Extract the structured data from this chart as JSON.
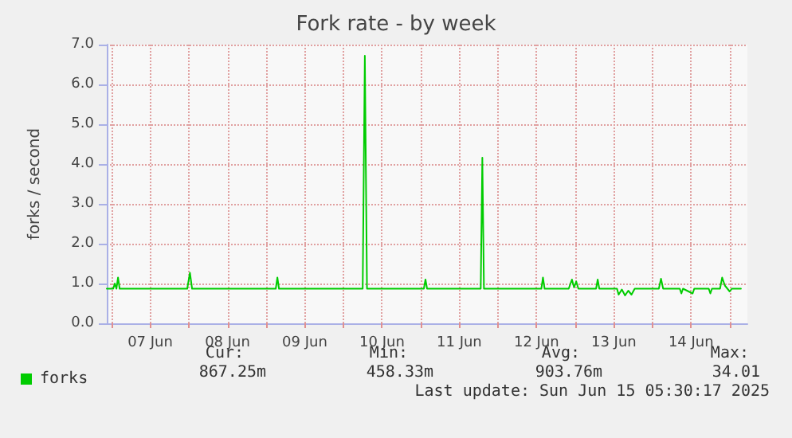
{
  "chart_data": {
    "type": "line",
    "title": "Fork rate - by week",
    "ylabel": "forks / second",
    "xlim": [
      "2025-06-06T22:30",
      "2025-06-15T05:30"
    ],
    "xticks": [
      {
        "value": "2025-06-07T00:00",
        "label": null
      },
      {
        "value": "2025-06-07T12:00",
        "label": "07 Jun"
      },
      {
        "value": "2025-06-08T00:00",
        "label": null
      },
      {
        "value": "2025-06-08T12:00",
        "label": "08 Jun"
      },
      {
        "value": "2025-06-09T00:00",
        "label": null
      },
      {
        "value": "2025-06-09T12:00",
        "label": "09 Jun"
      },
      {
        "value": "2025-06-10T00:00",
        "label": null
      },
      {
        "value": "2025-06-10T12:00",
        "label": "10 Jun"
      },
      {
        "value": "2025-06-11T00:00",
        "label": null
      },
      {
        "value": "2025-06-11T12:00",
        "label": "11 Jun"
      },
      {
        "value": "2025-06-12T00:00",
        "label": null
      },
      {
        "value": "2025-06-12T12:00",
        "label": "12 Jun"
      },
      {
        "value": "2025-06-13T00:00",
        "label": null
      },
      {
        "value": "2025-06-13T12:00",
        "label": "13 Jun"
      },
      {
        "value": "2025-06-14T00:00",
        "label": null
      },
      {
        "value": "2025-06-14T12:00",
        "label": "14 Jun"
      },
      {
        "value": "2025-06-15T00:00",
        "label": null
      }
    ],
    "ylim": [
      0,
      7
    ],
    "yticks": [
      {
        "value": 0,
        "label": "0.0"
      },
      {
        "value": 1,
        "label": "1.0"
      },
      {
        "value": 2,
        "label": "2.0"
      },
      {
        "value": 3,
        "label": "3.0"
      },
      {
        "value": 4,
        "label": "4.0"
      },
      {
        "value": 5,
        "label": "5.0"
      },
      {
        "value": 6,
        "label": "6.0"
      },
      {
        "value": 7,
        "label": "7.0"
      }
    ],
    "grid": true,
    "legend": "bottom left",
    "marker": "none",
    "line_style": "solid",
    "series": [
      {
        "name": "forks",
        "color": "#00cc00",
        "x": [
          "2025-06-06T22:30",
          "2025-06-07T00:30",
          "2025-06-07T01:00",
          "2025-06-07T01:30",
          "2025-06-07T02:00",
          "2025-06-07T02:30",
          "2025-06-07T23:30",
          "2025-06-08T00:20",
          "2025-06-08T01:00",
          "2025-06-09T03:00",
          "2025-06-09T03:30",
          "2025-06-09T04:00",
          "2025-06-10T06:00",
          "2025-06-10T06:40",
          "2025-06-10T07:20",
          "2025-06-11T01:00",
          "2025-06-11T01:30",
          "2025-06-11T02:00",
          "2025-06-11T18:40",
          "2025-06-11T19:10",
          "2025-06-11T19:40",
          "2025-06-12T13:30",
          "2025-06-12T14:00",
          "2025-06-12T14:30",
          "2025-06-12T22:00",
          "2025-06-12T23:00",
          "2025-06-12T23:40",
          "2025-06-13T00:20",
          "2025-06-13T01:00",
          "2025-06-13T06:30",
          "2025-06-13T07:00",
          "2025-06-13T07:30",
          "2025-06-13T13:00",
          "2025-06-13T13:30",
          "2025-06-13T14:30",
          "2025-06-13T15:30",
          "2025-06-13T16:30",
          "2025-06-13T17:30",
          "2025-06-13T18:30",
          "2025-06-14T02:00",
          "2025-06-14T02:40",
          "2025-06-14T03:20",
          "2025-06-14T08:30",
          "2025-06-14T09:00",
          "2025-06-14T09:30",
          "2025-06-14T12:30",
          "2025-06-14T13:00",
          "2025-06-14T17:30",
          "2025-06-14T18:00",
          "2025-06-14T18:30",
          "2025-06-14T21:00",
          "2025-06-14T21:40",
          "2025-06-14T22:30",
          "2025-06-15T00:00",
          "2025-06-15T00:40",
          "2025-06-15T03:30"
        ],
        "values": [
          0.87,
          0.87,
          1.0,
          0.87,
          1.15,
          0.87,
          0.87,
          1.27,
          0.87,
          0.87,
          1.15,
          0.87,
          0.87,
          6.72,
          0.87,
          0.87,
          1.1,
          0.87,
          0.87,
          4.16,
          0.87,
          0.87,
          1.15,
          0.87,
          0.87,
          1.1,
          0.9,
          1.05,
          0.87,
          0.87,
          1.1,
          0.87,
          0.87,
          0.72,
          0.85,
          0.7,
          0.82,
          0.72,
          0.87,
          0.87,
          1.12,
          0.87,
          0.87,
          0.75,
          0.87,
          0.75,
          0.87,
          0.87,
          0.75,
          0.87,
          0.87,
          1.15,
          0.95,
          0.8,
          0.87,
          0.87
        ]
      }
    ],
    "annotations": [
      "Cur:",
      "Min:",
      "Avg:",
      "Max:",
      "867.25m",
      "458.33m",
      "903.76m",
      "34.01",
      "Last update: Sun Jun 15 05:30:17 2025"
    ]
  }
}
